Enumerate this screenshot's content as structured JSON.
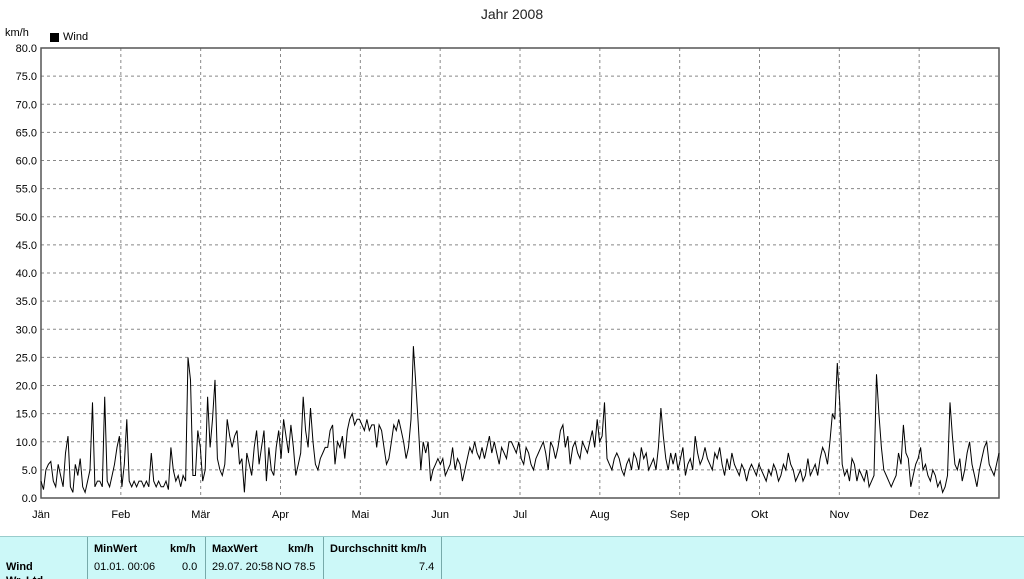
{
  "chart_data": {
    "type": "line",
    "title": "Jahr 2008",
    "ylabel": "km/h",
    "legend": {
      "position": "top-left",
      "entries": [
        "Wind"
      ]
    },
    "ylim": [
      0,
      80
    ],
    "yticks": [
      "0.0",
      "5.0",
      "10.0",
      "15.0",
      "20.0",
      "25.0",
      "30.0",
      "35.0",
      "40.0",
      "45.0",
      "50.0",
      "55.0",
      "60.0",
      "65.0",
      "70.0",
      "75.0",
      "80.0"
    ],
    "months": [
      "Jän",
      "Feb",
      "Mär",
      "Apr",
      "Mai",
      "Jun",
      "Jul",
      "Aug",
      "Sep",
      "Okt",
      "Nov",
      "Dez"
    ],
    "grid": true,
    "series": [
      {
        "name": "Wind",
        "color": "#000000",
        "values": [
          3,
          1.5,
          5,
          6,
          6.5,
          3,
          2,
          6,
          4,
          2,
          8,
          11,
          2,
          1,
          6,
          4,
          7,
          2,
          1,
          3,
          5,
          17,
          2,
          3,
          3,
          2,
          18,
          3,
          2,
          4,
          6,
          9,
          11,
          2,
          6,
          14,
          3,
          2,
          3,
          2,
          3,
          3,
          2,
          3,
          2,
          8,
          3,
          2,
          3,
          2,
          2,
          3,
          1.5,
          9,
          5,
          3,
          4,
          2,
          4,
          3,
          25,
          21,
          4,
          4,
          12,
          9,
          3,
          5,
          18,
          9,
          14,
          21,
          7,
          5,
          4,
          6,
          14,
          11,
          9,
          11,
          12,
          6,
          7,
          1,
          8,
          6,
          4,
          9,
          12,
          6,
          9,
          12,
          3,
          9,
          5,
          4,
          9,
          12,
          7,
          14,
          11,
          8,
          13,
          9,
          4,
          6,
          8,
          18,
          12,
          9,
          16,
          10,
          6,
          5,
          7,
          8,
          9,
          9,
          12,
          13,
          6,
          10,
          9,
          11,
          7,
          12,
          14,
          15,
          13,
          14,
          14,
          13,
          12,
          14,
          12,
          13,
          13,
          9,
          13,
          12,
          9,
          6,
          7,
          10,
          13,
          12,
          14,
          12,
          10,
          7,
          9,
          14,
          27,
          20,
          13,
          5,
          10,
          8,
          10,
          3,
          5,
          6,
          7,
          6,
          7,
          4,
          5,
          6,
          9,
          5,
          7,
          6,
          3,
          5,
          7,
          9,
          8,
          10,
          8,
          7,
          9,
          7,
          9,
          11,
          8,
          10,
          8,
          6,
          9,
          8,
          7,
          10,
          10,
          9,
          8,
          10,
          7,
          6,
          9,
          8,
          6,
          5,
          7,
          8,
          9,
          10,
          8,
          5,
          10,
          9,
          7,
          9,
          12,
          13,
          9,
          11,
          6,
          9,
          10,
          8,
          7,
          10,
          9,
          8,
          10,
          12,
          9,
          14,
          10,
          11,
          17,
          7,
          6,
          5,
          7,
          8,
          7,
          5,
          4,
          6,
          7,
          5,
          8,
          7,
          5,
          9,
          7,
          8,
          5,
          6,
          7,
          5,
          9,
          16,
          11,
          7,
          5,
          8,
          6,
          8,
          5,
          7,
          9,
          4,
          6,
          7,
          5,
          11,
          8,
          6,
          7,
          9,
          7,
          6,
          5,
          8,
          7,
          9,
          6,
          4,
          7,
          5,
          8,
          6,
          5,
          4,
          6,
          5,
          3,
          5,
          6,
          5,
          4,
          6,
          5,
          4,
          3,
          5,
          4,
          6,
          5,
          3,
          4,
          6,
          5,
          8,
          6,
          5,
          3,
          4,
          5,
          3,
          4,
          7,
          4,
          5,
          6,
          4,
          7,
          9,
          8,
          6,
          10,
          15,
          14,
          24,
          17,
          6,
          4,
          5,
          3,
          7,
          6,
          3,
          5,
          4,
          3,
          5,
          2,
          3,
          4,
          22,
          15,
          9,
          5,
          4,
          3,
          2,
          3,
          4,
          8,
          6,
          13,
          8,
          7,
          2,
          4,
          6,
          7,
          9,
          5,
          6,
          4,
          3,
          5,
          4,
          2,
          3,
          1,
          2,
          4,
          17,
          11,
          6,
          5,
          7,
          3,
          5,
          8,
          10,
          6,
          4,
          2,
          5,
          7,
          9,
          10,
          6,
          5,
          4,
          6,
          8
        ]
      }
    ]
  },
  "stats": {
    "row_label": "Wind",
    "row_label_2": "Wr. Ltd.",
    "min_header": "MinWert",
    "min_unit": "km/h",
    "min_date": "01.01.  00:06",
    "min_value": "0.0",
    "max_header": "MaxWert",
    "max_unit": "km/h",
    "max_date": "29.07.  20:58",
    "max_dir": "NO",
    "max_value": "78.5",
    "avg_header": "Durchschnitt km/h",
    "avg_value": "7.4"
  }
}
